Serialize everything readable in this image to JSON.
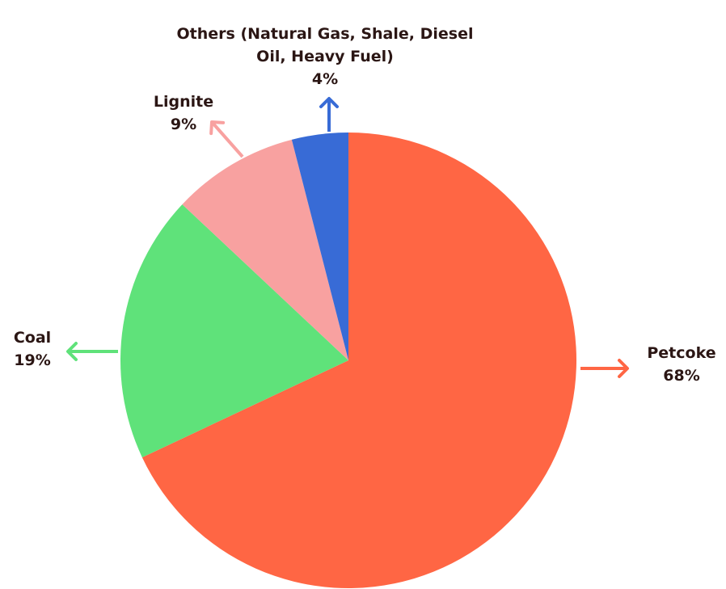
{
  "chart_data": {
    "type": "pie",
    "categories": [
      "Petcoke",
      "Coal",
      "Lignite",
      "Others (Natural Gas, Shale, Diesel Oil, Heavy Fuel)"
    ],
    "values": [
      68,
      19,
      9,
      4
    ],
    "value_labels": [
      "68%",
      "19%",
      "9%",
      "4%"
    ],
    "colors": [
      "#ff6644",
      "#5fe27a",
      "#f8a1a0",
      "#386bd6"
    ]
  }
}
